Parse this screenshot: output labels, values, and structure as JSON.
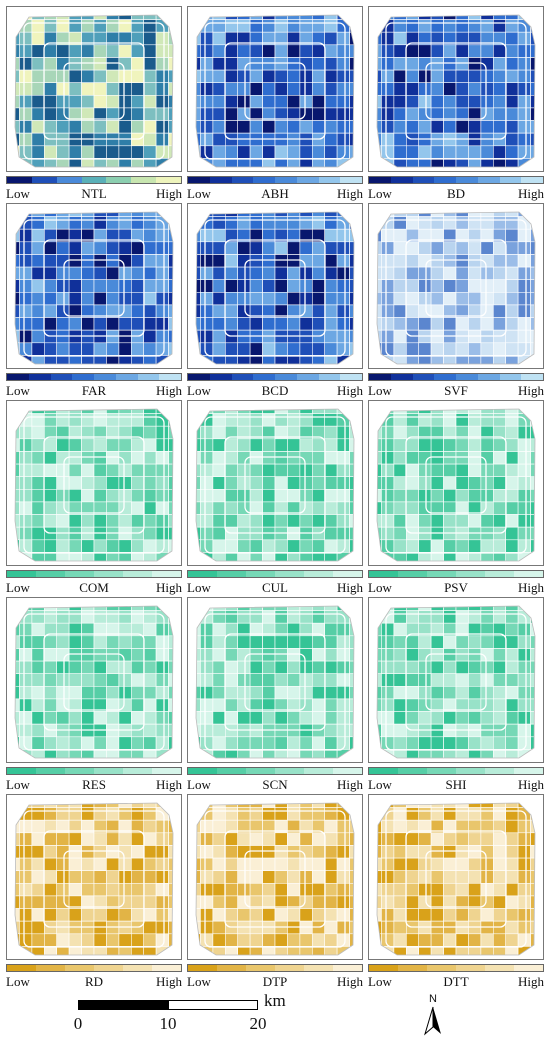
{
  "legend_low": "Low",
  "legend_high": "High",
  "palettes": {
    "blue": [
      "#08176e",
      "#10309a",
      "#1f4fb8",
      "#2f6dcf",
      "#4a8ad9",
      "#6ca7e3",
      "#93c6ec",
      "#bfe2f3"
    ],
    "blue_light": [
      "#5b86cf",
      "#7aa2dd",
      "#9bbde8",
      "#b9d4ef",
      "#cfe3f4",
      "#e2eff8"
    ],
    "green": [
      "#35c496",
      "#56cea6",
      "#76d8b6",
      "#98e2c8",
      "#b8ecd9",
      "#d6f5ea"
    ],
    "ygb": [
      "#1a5b8c",
      "#2f7ea8",
      "#4f9fba",
      "#7dbfc0",
      "#a8d6b8",
      "#d0e8b8",
      "#f0f4bd"
    ],
    "yellow": [
      "#d9a21a",
      "#e2b446",
      "#e9c66c",
      "#efd490",
      "#f4e2b2",
      "#faefd5"
    ]
  },
  "panels": [
    {
      "name": "NTL",
      "ramp": [
        "#08176e",
        "#1f4fb8",
        "#4a8ad9",
        "#5ab0b8",
        "#8ccfb0",
        "#c8e6b0",
        "#eef4bc"
      ],
      "fill": "ygb"
    },
    {
      "name": "ABH",
      "ramp": [
        "#08176e",
        "#10309a",
        "#1f4fb8",
        "#2f6dcf",
        "#4a8ad9",
        "#6ca7e3",
        "#93c6ec",
        "#bfe2f3"
      ],
      "fill": "blue"
    },
    {
      "name": "BD",
      "ramp": [
        "#08176e",
        "#10309a",
        "#1f4fb8",
        "#2f6dcf",
        "#4a8ad9",
        "#6ca7e3",
        "#93c6ec",
        "#bfe2f3"
      ],
      "fill": "blue"
    },
    {
      "name": "FAR",
      "ramp": [
        "#08176e",
        "#10309a",
        "#1f4fb8",
        "#2f6dcf",
        "#4a8ad9",
        "#6ca7e3",
        "#93c6ec",
        "#bfe2f3"
      ],
      "fill": "blue"
    },
    {
      "name": "BCD",
      "ramp": [
        "#08176e",
        "#10309a",
        "#1f4fb8",
        "#2f6dcf",
        "#4a8ad9",
        "#6ca7e3",
        "#93c6ec",
        "#bfe2f3"
      ],
      "fill": "blue"
    },
    {
      "name": "SVF",
      "ramp": [
        "#08176e",
        "#10309a",
        "#1f4fb8",
        "#2f6dcf",
        "#4a8ad9",
        "#6ca7e3",
        "#93c6ec",
        "#bfe2f3"
      ],
      "fill": "blue_light"
    },
    {
      "name": "COM",
      "ramp": [
        "#35c496",
        "#56cea6",
        "#76d8b6",
        "#98e2c8",
        "#b8ecd9",
        "#d6f5ea"
      ],
      "fill": "green"
    },
    {
      "name": "CUL",
      "ramp": [
        "#35c496",
        "#56cea6",
        "#76d8b6",
        "#98e2c8",
        "#b8ecd9",
        "#d6f5ea"
      ],
      "fill": "green"
    },
    {
      "name": "PSV",
      "ramp": [
        "#35c496",
        "#56cea6",
        "#76d8b6",
        "#98e2c8",
        "#b8ecd9",
        "#d6f5ea"
      ],
      "fill": "green"
    },
    {
      "name": "RES",
      "ramp": [
        "#35c496",
        "#56cea6",
        "#76d8b6",
        "#98e2c8",
        "#b8ecd9",
        "#d6f5ea"
      ],
      "fill": "green"
    },
    {
      "name": "SCN",
      "ramp": [
        "#35c496",
        "#56cea6",
        "#76d8b6",
        "#98e2c8",
        "#b8ecd9",
        "#d6f5ea"
      ],
      "fill": "green"
    },
    {
      "name": "SHI",
      "ramp": [
        "#35c496",
        "#56cea6",
        "#76d8b6",
        "#98e2c8",
        "#b8ecd9",
        "#d6f5ea"
      ],
      "fill": "green"
    },
    {
      "name": "RD",
      "ramp": [
        "#d9a21a",
        "#e2b446",
        "#e9c66c",
        "#efd490",
        "#f4e2b2",
        "#faefd5"
      ],
      "fill": "yellow"
    },
    {
      "name": "DTP",
      "ramp": [
        "#d9a21a",
        "#e2b446",
        "#e9c66c",
        "#efd490",
        "#f4e2b2",
        "#faefd5"
      ],
      "fill": "yellow"
    },
    {
      "name": "DTT",
      "ramp": [
        "#d9a21a",
        "#e2b446",
        "#e9c66c",
        "#efd490",
        "#f4e2b2",
        "#faefd5"
      ],
      "fill": "yellow"
    }
  ],
  "scale_bar": {
    "ticks": [
      "0",
      "10",
      "20"
    ],
    "unit": "km"
  },
  "north_arrow": {
    "letter": "N",
    "icon": "north-arrow-icon"
  }
}
